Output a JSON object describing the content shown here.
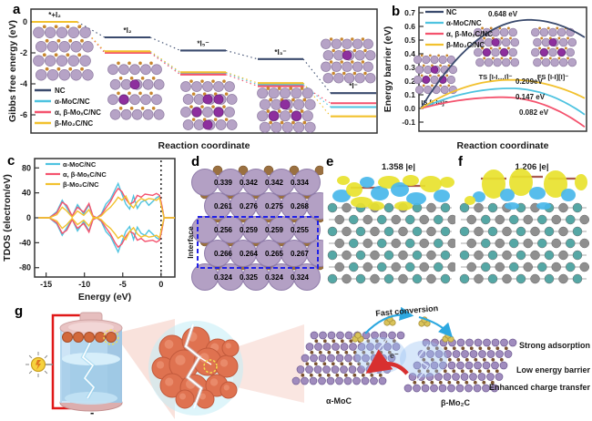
{
  "panels": {
    "a": {
      "letter": "a"
    },
    "b": {
      "letter": "b"
    },
    "c": {
      "letter": "c"
    },
    "d": {
      "letter": "d",
      "interface_label": "Interface",
      "bond_values": [
        [
          "0.339",
          "0.342",
          "0.342",
          "0.334"
        ],
        [
          "0.261",
          "0.276",
          "0.275",
          "0.268"
        ],
        [
          "0.256",
          "0.259",
          "0.259",
          "0.255"
        ],
        [
          "0.266",
          "0.264",
          "0.265",
          "0.267"
        ],
        [
          "0.324",
          "0.325",
          "0.324",
          "0.324"
        ]
      ]
    },
    "e": {
      "letter": "e",
      "charge": "1.358 |e|"
    },
    "f": {
      "letter": "f",
      "charge": "1.206 |e|"
    },
    "g": {
      "letter": "g",
      "plus": "+",
      "minus": "-",
      "fast_conversion": "Fast conversion",
      "electron": "e⁻",
      "left_material": "α-MoC",
      "right_material": "β-Mo₂C",
      "features": [
        "Strong adsorption",
        "Low energy barrier",
        "Enhanced charge transfer"
      ]
    }
  },
  "colors": {
    "nc": "#3a4a6d",
    "alpha_moc_nc": "#4ec3e0",
    "alpha_beta_moxc_nc": "#f4536e",
    "beta_mo2c_nc": "#f2c12e",
    "charge_accumulation": "#e8e22e",
    "charge_depletion": "#49b7ea",
    "iodine_atom": "#8e2f9e",
    "interface_box": "#2020e8"
  },
  "chart_data": [
    {
      "panel": "a",
      "type": "level-diagram",
      "xlabel": "Reaction coordinate",
      "ylabel": "Gibbs free energy (eV)",
      "yticks": [
        0,
        -2,
        -4,
        -6
      ],
      "ylim": [
        0.8,
        -7.2
      ],
      "states": [
        "*+I₂",
        "*I₂",
        "*I₅⁻",
        "*I₃⁻",
        "*I⁻"
      ],
      "series": [
        {
          "name": "NC",
          "color": "#3a4a6d",
          "values": [
            0,
            -1.0,
            -1.85,
            -2.4,
            -4.6
          ]
        },
        {
          "name": "α-MoC/NC",
          "color": "#4ec3e0",
          "values": [
            0,
            -1.95,
            -3.3,
            -4.05,
            -5.5
          ]
        },
        {
          "name": "α, β-MoₓC/NC",
          "color": "#f4536e",
          "values": [
            0,
            -2.0,
            -3.4,
            -4.15,
            -5.25
          ]
        },
        {
          "name": "β-Mo₂C/NC",
          "color": "#f2c12e",
          "values": [
            0,
            -1.9,
            -3.25,
            -3.95,
            -6.1
          ]
        }
      ],
      "insets": [
        {
          "iodine": 0
        },
        {
          "iodine": 2
        },
        {
          "iodine": 5
        },
        {
          "iodine": 3
        },
        {
          "iodine": 1
        }
      ]
    },
    {
      "panel": "b",
      "type": "line",
      "xlabel": "Reaction coordinate",
      "ylabel": "Energy barrier (eV)",
      "yticks": [
        -0.1,
        0.0,
        0.1,
        0.2,
        0.3,
        0.4,
        0.5,
        0.6,
        0.7
      ],
      "ylim": [
        -0.15,
        0.75
      ],
      "series": [
        {
          "name": "NC",
          "color": "#3a4a6d",
          "start": 0,
          "peak": 0.648,
          "peak_x": 0.66,
          "end": 0.52,
          "label": "0.648 eV"
        },
        {
          "name": "α-MoC/NC",
          "color": "#4ec3e0",
          "start": 0,
          "peak": 0.147,
          "peak_x": 0.55,
          "end": -0.045,
          "label": "0.147 eV"
        },
        {
          "name": "α, β-MoₓC/NC",
          "color": "#f4536e",
          "start": 0,
          "peak": 0.082,
          "peak_x": 0.5,
          "end": -0.135,
          "label": "0.082 eV"
        },
        {
          "name": "β-Mo₂C/NC",
          "color": "#f2c12e",
          "start": 0,
          "peak": 0.209,
          "peak_x": 0.55,
          "end": 0.075,
          "label": "0.209eV"
        }
      ],
      "state_labels": [
        "IS [I-I-I]⁻",
        "TS [I-I…I]⁻",
        "FS [I-I][I]⁻"
      ]
    },
    {
      "panel": "c",
      "type": "line",
      "xlabel": "Energy (eV)",
      "ylabel": "TDOS (electron/eV)",
      "xticks": [
        -15,
        -10,
        -5,
        0
      ],
      "yticks": [
        -80,
        -40,
        0,
        40,
        80
      ],
      "xlim": [
        -16.5,
        1.8
      ],
      "ylim": [
        -95,
        95
      ],
      "fermi_level_x": 0,
      "mirrored_spin_channels": true,
      "x": [
        -16,
        -14.6,
        -13.6,
        -12.9,
        -12.3,
        -11.6,
        -10.9,
        -10.1,
        -9.4,
        -8.9,
        -8.4,
        -7.8,
        -7.2,
        -6.6,
        -6.0,
        -5.6,
        -5.1,
        -4.6,
        -4.1,
        -3.6,
        -3.1,
        -2.6,
        -2.1,
        -1.6,
        -1.1,
        -0.6,
        -0.2,
        0.1,
        0.4,
        1.8
      ],
      "series": [
        {
          "name": "α-MoC/NC",
          "color": "#4ec3e0",
          "up": [
            0,
            0,
            10,
            28,
            16,
            2,
            21,
            6,
            21,
            3,
            0,
            6,
            22,
            30,
            45,
            55,
            38,
            22,
            14,
            35,
            15,
            25,
            28,
            20,
            26,
            32,
            35,
            18,
            0,
            0
          ]
        },
        {
          "name": "α, β-MoₓC/NC",
          "color": "#f4536e",
          "up": [
            0,
            0,
            8,
            25,
            20,
            3,
            17,
            9,
            23,
            3,
            0,
            5,
            16,
            26,
            40,
            47,
            42,
            30,
            22,
            25,
            36,
            33,
            38,
            37,
            36,
            39,
            36,
            20,
            0,
            0
          ]
        },
        {
          "name": "β-Mo₂C/NC",
          "color": "#f2c12e",
          "up": [
            0,
            0,
            5,
            17,
            11,
            1,
            11,
            4,
            13,
            1,
            0,
            3,
            11,
            17,
            26,
            33,
            28,
            35,
            22,
            16,
            26,
            31,
            28,
            31,
            30,
            28,
            32,
            15,
            0,
            0
          ]
        }
      ]
    }
  ]
}
